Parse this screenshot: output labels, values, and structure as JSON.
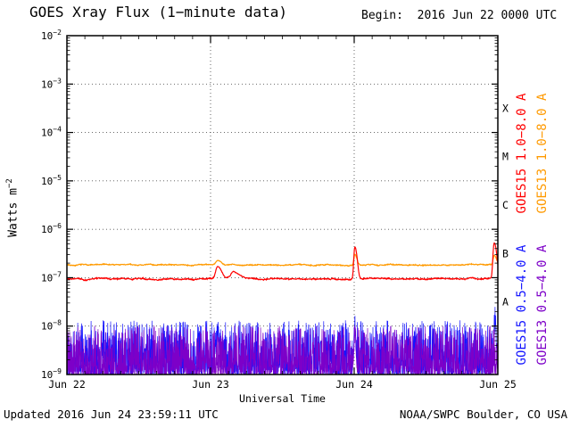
{
  "header": {
    "title": "GOES Xray Flux (1−minute data)",
    "begin_label": "Begin:  2016 Jun 22 0000 UTC"
  },
  "footer": {
    "updated": "Updated 2016 Jun 24 23:59:11 UTC",
    "credit": "NOAA/SWPC Boulder, CO USA"
  },
  "chart_data": {
    "type": "line",
    "title": "GOES Xray Flux (1−minute data)",
    "xlabel": "Universal Time",
    "ylabel_base": "Watts m",
    "ylabel_exp": "−2",
    "x_ticks": [
      "Jun 22",
      "Jun 23",
      "Jun 24",
      "Jun 25"
    ],
    "x_range_days": 3,
    "y_exponents": [
      -2,
      -3,
      -4,
      -5,
      -6,
      -7,
      -8,
      -9
    ],
    "ylim_log": [
      -9,
      -2
    ],
    "grid": {
      "vertical_days": [
        1,
        2
      ],
      "horizontal_decades": "every decade",
      "style": "dotted"
    },
    "flare_classes": [
      {
        "label": "X",
        "log_mid": -3.5
      },
      {
        "label": "M",
        "log_mid": -4.5
      },
      {
        "label": "C",
        "log_mid": -5.5
      },
      {
        "label": "B",
        "log_mid": -6.5
      },
      {
        "label": "A",
        "log_mid": -7.5
      }
    ],
    "series": [
      {
        "name": "GOES15 1.0−8.0 A",
        "color": "#ff0000",
        "kind": "smooth",
        "baseline": 9.5e-08,
        "noise_frac": 0.04,
        "events": [
          {
            "t_days": 1.05,
            "peak": 1.7e-07,
            "width_days": 0.035
          },
          {
            "t_days": 1.16,
            "peak": 1.35e-07,
            "width_days": 0.05
          },
          {
            "t_days": 2.005,
            "peak": 4.3e-07,
            "width_days": 0.018
          },
          {
            "t_days": 2.975,
            "peak": 5.2e-07,
            "width_days": 0.02
          }
        ]
      },
      {
        "name": "GOES13 1.0−8.0 A",
        "color": "#ff9a00",
        "kind": "smooth",
        "baseline": 1.85e-07,
        "noise_frac": 0.035,
        "events": [
          {
            "t_days": 1.05,
            "peak": 2.2e-07,
            "width_days": 0.035
          },
          {
            "t_days": 2.005,
            "peak": 3.1e-07,
            "width_days": 0.018
          },
          {
            "t_days": 2.975,
            "peak": 2.9e-07,
            "width_days": 0.02
          }
        ]
      },
      {
        "name": "GOES15 0.5−4.0 A",
        "color": "#1414ff",
        "kind": "noisy",
        "floor": 1e-09,
        "typ_max": 1e-08,
        "events": [
          {
            "t_days": 1.05,
            "peak": 1.3e-08,
            "width_days": 0.02
          },
          {
            "t_days": 2.005,
            "peak": 2.2e-08,
            "width_days": 0.01
          },
          {
            "t_days": 2.98,
            "peak": 3e-08,
            "width_days": 0.012
          }
        ]
      },
      {
        "name": "GOES13 0.5−4.0 A",
        "color": "#7d00c8",
        "kind": "noisy",
        "floor": 1e-09,
        "typ_max": 8e-09,
        "events": [
          {
            "t_days": 2.005,
            "peak": 1.5e-08,
            "width_days": 0.01
          }
        ]
      }
    ]
  }
}
